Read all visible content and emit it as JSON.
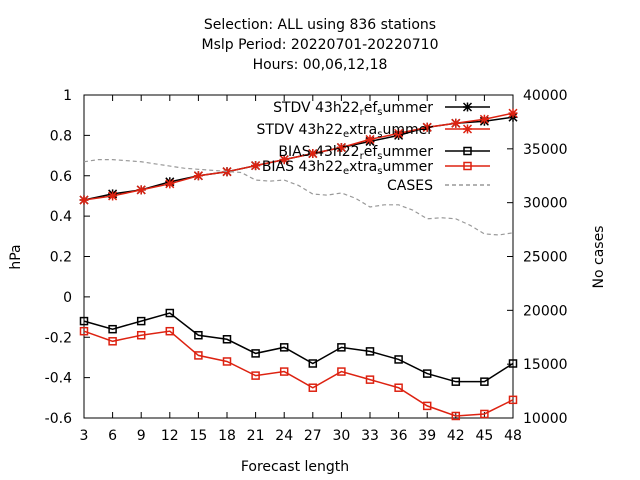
{
  "chart_data": {
    "type": "line",
    "title_lines": [
      "Selection: ALL using   836 stations",
      "Mslp   Period: 20220701-20220710",
      "Hours:  00,06,12,18"
    ],
    "xlabel": "Forecast length",
    "ylabel": "hPa",
    "y2label": "No cases",
    "x": [
      3,
      6,
      9,
      12,
      15,
      18,
      21,
      24,
      27,
      30,
      33,
      36,
      39,
      42,
      45,
      48
    ],
    "xlim": [
      3,
      48
    ],
    "ylim": [
      -0.6,
      1.0
    ],
    "y2lim": [
      10000,
      40000
    ],
    "xticks": [
      "3",
      "6",
      "9",
      "12",
      "15",
      "18",
      "21",
      "24",
      "27",
      "30",
      "33",
      "36",
      "39",
      "42",
      "45",
      "48"
    ],
    "yticks": [
      "-0.6",
      "-0.4",
      "-0.2",
      "0",
      "0.2",
      "0.4",
      "0.6",
      "0.8",
      "1"
    ],
    "y2ticks": [
      "10000",
      "15000",
      "20000",
      "25000",
      "30000",
      "35000",
      "40000"
    ],
    "grid": false,
    "legend_position": "top-right",
    "series": [
      {
        "name": "STDV 43h22_ref_summer",
        "legend_parts": [
          "STDV 43h22",
          "r",
          "ef",
          "s",
          "ummer"
        ],
        "axis": "y1",
        "color": "#000000",
        "marker": "star",
        "dash": "",
        "values": [
          0.48,
          0.51,
          0.53,
          0.57,
          0.6,
          0.62,
          0.65,
          0.68,
          0.71,
          0.74,
          0.77,
          0.8,
          0.84,
          0.86,
          0.87,
          0.89
        ]
      },
      {
        "name": "STDV 43h22_extra_summer",
        "legend_parts": [
          "STDV 43h22",
          "e",
          "xtra",
          "s",
          "ummer"
        ],
        "axis": "y1",
        "color": "#dd2211",
        "marker": "star",
        "dash": "",
        "values": [
          0.48,
          0.5,
          0.53,
          0.56,
          0.6,
          0.62,
          0.65,
          0.68,
          0.71,
          0.74,
          0.78,
          0.81,
          0.84,
          0.86,
          0.88,
          0.91
        ]
      },
      {
        "name": "BIAS 43h22_ref_summer",
        "legend_parts": [
          "BIAS 43h22",
          "r",
          "ef",
          "s",
          "ummer"
        ],
        "axis": "y1",
        "color": "#000000",
        "marker": "square",
        "dash": "",
        "values": [
          -0.12,
          -0.16,
          -0.12,
          -0.08,
          -0.19,
          -0.21,
          -0.28,
          -0.25,
          -0.33,
          -0.25,
          -0.27,
          -0.31,
          -0.38,
          -0.42,
          -0.42,
          -0.33
        ]
      },
      {
        "name": "BIAS 43h22_extra_summer",
        "legend_parts": [
          "BIAS 43h22",
          "e",
          "xtra",
          "s",
          "ummer"
        ],
        "axis": "y1",
        "color": "#dd2211",
        "marker": "square",
        "dash": "",
        "values": [
          -0.17,
          -0.22,
          -0.19,
          -0.17,
          -0.29,
          -0.32,
          -0.39,
          -0.37,
          -0.45,
          -0.37,
          -0.41,
          -0.45,
          -0.54,
          -0.59,
          -0.58,
          -0.51
        ]
      },
      {
        "name": "CASES",
        "legend_parts": [
          "CASES"
        ],
        "axis": "y2",
        "color": "#999999",
        "marker": "none",
        "dash": "4,3",
        "x": [
          3,
          4.5,
          6,
          7.5,
          9,
          10.5,
          12,
          13.5,
          15,
          16.5,
          18,
          19.5,
          21,
          22.5,
          24,
          25.5,
          27,
          28.5,
          30,
          31.5,
          33,
          34.5,
          36,
          37.5,
          39,
          40.5,
          42,
          43.5,
          45,
          46.5,
          48
        ],
        "values": [
          33800,
          34000,
          34000,
          33900,
          33800,
          33600,
          33400,
          33200,
          33100,
          33000,
          32900,
          32800,
          32100,
          32000,
          32100,
          31600,
          30800,
          30700,
          30900,
          30400,
          29600,
          29800,
          29800,
          29300,
          28500,
          28600,
          28500,
          27900,
          27100,
          27000,
          27200
        ]
      }
    ]
  }
}
